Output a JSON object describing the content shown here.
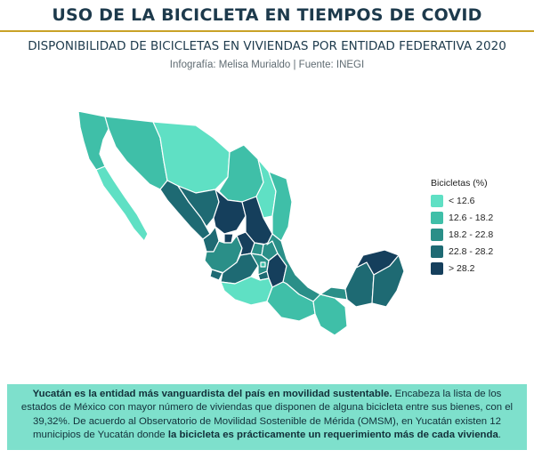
{
  "header": {
    "title": "USO DE LA BICICLETA EN TIEMPOS DE COVID",
    "subtitle": "DISPONIBILIDAD DE BICICLETAS EN VIVIENDAS POR ENTIDAD FEDERATIVA 2020",
    "credits": "Infografía: Melisa Murialdo | Fuente: INEGI"
  },
  "legend": {
    "title": "Bicicletas (%)",
    "classes": [
      {
        "label": "< 12.6",
        "color": "#5fe0c4"
      },
      {
        "label": "12.6 - 18.2",
        "color": "#3fbfa8"
      },
      {
        "label": "18.2 - 22.8",
        "color": "#2a8f88"
      },
      {
        "label": "22.8 - 28.2",
        "color": "#1e6a73"
      },
      {
        "label": "> 28.2",
        "color": "#153f5c"
      }
    ]
  },
  "footer": {
    "p1_bold": "Yucatán es la entidad más vanguardista del país en movilidad sustentable.",
    "p1_rest": " Encabeza la lista de los estados de México con mayor número de viviendas que disponen de alguna bicicleta entre sus bienes, con el 39,32%. De acuerdo al Observatorio de Movilidad Sostenible de Mérida (OMSM), en Yucatán existen 12 municipios de Yucatán donde ",
    "p2_bold": "la bicicleta es prácticamente un requerimiento más de cada vivienda",
    "p2_end": "."
  }
}
